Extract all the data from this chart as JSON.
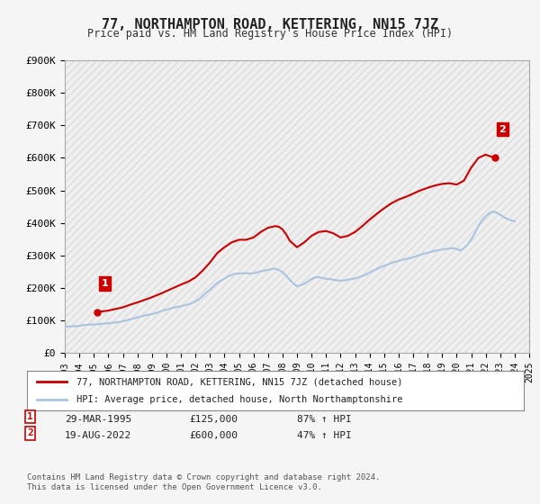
{
  "title": "77, NORTHAMPTON ROAD, KETTERING, NN15 7JZ",
  "subtitle": "Price paid vs. HM Land Registry's House Price Index (HPI)",
  "ylabel": "",
  "ylim": [
    0,
    900000
  ],
  "yticks": [
    0,
    100000,
    200000,
    300000,
    400000,
    500000,
    600000,
    700000,
    800000,
    900000
  ],
  "ytick_labels": [
    "£0",
    "£100K",
    "£200K",
    "£300K",
    "£400K",
    "£500K",
    "£600K",
    "£700K",
    "£800K",
    "£900K"
  ],
  "background_color": "#f5f5f5",
  "plot_bg_color": "#ffffff",
  "grid_color": "#cccccc",
  "hpi_color": "#aac4e0",
  "price_color": "#cc0000",
  "marker_color": "#cc0000",
  "sale1_date_idx": 1995.24,
  "sale1_price": 125000,
  "sale1_label": "1",
  "sale2_date_idx": 2022.63,
  "sale2_price": 600000,
  "sale2_label": "2",
  "legend_line1": "77, NORTHAMPTON ROAD, KETTERING, NN15 7JZ (detached house)",
  "legend_line2": "HPI: Average price, detached house, North Northamptonshire",
  "table_row1": [
    "1",
    "29-MAR-1995",
    "£125,000",
    "87% ↑ HPI"
  ],
  "table_row2": [
    "2",
    "19-AUG-2022",
    "£600,000",
    "47% ↑ HPI"
  ],
  "footer": "Contains HM Land Registry data © Crown copyright and database right 2024.\nThis data is licensed under the Open Government Licence v3.0.",
  "hpi_data": {
    "years": [
      1993.0,
      1993.25,
      1993.5,
      1993.75,
      1994.0,
      1994.25,
      1994.5,
      1994.75,
      1995.0,
      1995.25,
      1995.5,
      1995.75,
      1996.0,
      1996.25,
      1996.5,
      1996.75,
      1997.0,
      1997.25,
      1997.5,
      1997.75,
      1998.0,
      1998.25,
      1998.5,
      1998.75,
      1999.0,
      1999.25,
      1999.5,
      1999.75,
      2000.0,
      2000.25,
      2000.5,
      2000.75,
      2001.0,
      2001.25,
      2001.5,
      2001.75,
      2002.0,
      2002.25,
      2002.5,
      2002.75,
      2003.0,
      2003.25,
      2003.5,
      2003.75,
      2004.0,
      2004.25,
      2004.5,
      2004.75,
      2005.0,
      2005.25,
      2005.5,
      2005.75,
      2006.0,
      2006.25,
      2006.5,
      2006.75,
      2007.0,
      2007.25,
      2007.5,
      2007.75,
      2008.0,
      2008.25,
      2008.5,
      2008.75,
      2009.0,
      2009.25,
      2009.5,
      2009.75,
      2010.0,
      2010.25,
      2010.5,
      2010.75,
      2011.0,
      2011.25,
      2011.5,
      2011.75,
      2012.0,
      2012.25,
      2012.5,
      2012.75,
      2013.0,
      2013.25,
      2013.5,
      2013.75,
      2014.0,
      2014.25,
      2014.5,
      2014.75,
      2015.0,
      2015.25,
      2015.5,
      2015.75,
      2016.0,
      2016.25,
      2016.5,
      2016.75,
      2017.0,
      2017.25,
      2017.5,
      2017.75,
      2018.0,
      2018.25,
      2018.5,
      2018.75,
      2019.0,
      2019.25,
      2019.5,
      2019.75,
      2020.0,
      2020.25,
      2020.5,
      2020.75,
      2021.0,
      2021.25,
      2021.5,
      2021.75,
      2022.0,
      2022.25,
      2022.5,
      2022.75,
      2023.0,
      2023.25,
      2023.5,
      2023.75,
      2024.0
    ],
    "values": [
      80000,
      81000,
      81500,
      82000,
      83000,
      85000,
      86000,
      87000,
      87500,
      88000,
      89000,
      90000,
      91000,
      92000,
      93500,
      95000,
      97000,
      100000,
      103000,
      106000,
      109000,
      112000,
      115000,
      117000,
      119000,
      122000,
      126000,
      130000,
      133000,
      136000,
      139000,
      141000,
      143000,
      146000,
      149000,
      153000,
      158000,
      165000,
      175000,
      185000,
      194000,
      205000,
      215000,
      222000,
      228000,
      235000,
      240000,
      243000,
      244000,
      245000,
      245000,
      244000,
      245000,
      248000,
      251000,
      253000,
      255000,
      258000,
      259000,
      255000,
      248000,
      238000,
      225000,
      213000,
      205000,
      208000,
      213000,
      220000,
      227000,
      232000,
      233000,
      230000,
      228000,
      227000,
      225000,
      223000,
      222000,
      223000,
      225000,
      227000,
      229000,
      232000,
      236000,
      241000,
      247000,
      253000,
      258000,
      263000,
      268000,
      272000,
      276000,
      280000,
      283000,
      286000,
      289000,
      291000,
      294000,
      298000,
      302000,
      305000,
      308000,
      311000,
      314000,
      316000,
      318000,
      320000,
      321000,
      322000,
      320000,
      315000,
      322000,
      333000,
      348000,
      368000,
      390000,
      408000,
      420000,
      430000,
      435000,
      432000,
      425000,
      418000,
      412000,
      408000,
      405000
    ]
  },
  "price_line_data": {
    "years": [
      1995.24,
      1995.5,
      1996.0,
      1996.5,
      1997.0,
      1997.5,
      1998.0,
      1998.5,
      1999.0,
      1999.5,
      2000.0,
      2000.5,
      2001.0,
      2001.5,
      2002.0,
      2002.5,
      2003.0,
      2003.5,
      2004.0,
      2004.5,
      2005.0,
      2005.5,
      2006.0,
      2006.5,
      2007.0,
      2007.5,
      2007.75,
      2008.0,
      2008.25,
      2008.5,
      2009.0,
      2009.5,
      2010.0,
      2010.5,
      2011.0,
      2011.5,
      2012.0,
      2012.5,
      2013.0,
      2013.5,
      2014.0,
      2014.5,
      2015.0,
      2015.5,
      2016.0,
      2016.5,
      2017.0,
      2017.5,
      2018.0,
      2018.5,
      2019.0,
      2019.5,
      2020.0,
      2020.5,
      2021.0,
      2021.5,
      2022.0,
      2022.63
    ],
    "values": [
      125000,
      127000,
      130000,
      135000,
      140000,
      148000,
      155000,
      163000,
      171000,
      180000,
      190000,
      200000,
      210000,
      219000,
      232000,
      253000,
      278000,
      307000,
      325000,
      340000,
      348000,
      348000,
      355000,
      372000,
      385000,
      390000,
      388000,
      380000,
      365000,
      345000,
      325000,
      340000,
      360000,
      372000,
      375000,
      368000,
      355000,
      360000,
      372000,
      390000,
      410000,
      428000,
      445000,
      460000,
      472000,
      480000,
      490000,
      500000,
      508000,
      515000,
      520000,
      522000,
      518000,
      530000,
      570000,
      600000,
      610000,
      600000
    ]
  }
}
